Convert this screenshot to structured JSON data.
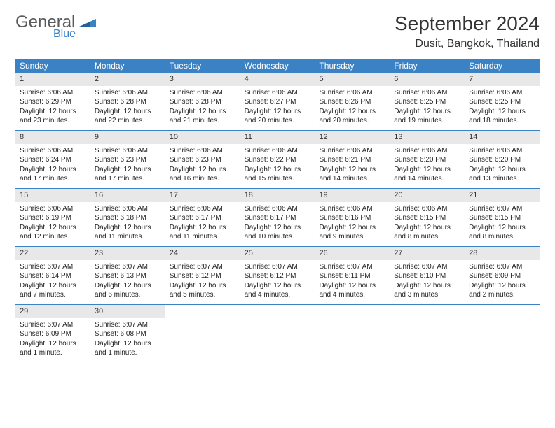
{
  "logo": {
    "text_general": "General",
    "text_blue": "Blue"
  },
  "title": "September 2024",
  "location": "Dusit, Bangkok, Thailand",
  "colors": {
    "header_bg": "#3b82c4",
    "daynum_bg": "#e8e8e8",
    "page_bg": "#ffffff",
    "text": "#222222"
  },
  "day_names": [
    "Sunday",
    "Monday",
    "Tuesday",
    "Wednesday",
    "Thursday",
    "Friday",
    "Saturday"
  ],
  "days": [
    {
      "n": 1,
      "sunrise": "6:06 AM",
      "sunset": "6:29 PM",
      "daylight": "12 hours and 23 minutes."
    },
    {
      "n": 2,
      "sunrise": "6:06 AM",
      "sunset": "6:28 PM",
      "daylight": "12 hours and 22 minutes."
    },
    {
      "n": 3,
      "sunrise": "6:06 AM",
      "sunset": "6:28 PM",
      "daylight": "12 hours and 21 minutes."
    },
    {
      "n": 4,
      "sunrise": "6:06 AM",
      "sunset": "6:27 PM",
      "daylight": "12 hours and 20 minutes."
    },
    {
      "n": 5,
      "sunrise": "6:06 AM",
      "sunset": "6:26 PM",
      "daylight": "12 hours and 20 minutes."
    },
    {
      "n": 6,
      "sunrise": "6:06 AM",
      "sunset": "6:25 PM",
      "daylight": "12 hours and 19 minutes."
    },
    {
      "n": 7,
      "sunrise": "6:06 AM",
      "sunset": "6:25 PM",
      "daylight": "12 hours and 18 minutes."
    },
    {
      "n": 8,
      "sunrise": "6:06 AM",
      "sunset": "6:24 PM",
      "daylight": "12 hours and 17 minutes."
    },
    {
      "n": 9,
      "sunrise": "6:06 AM",
      "sunset": "6:23 PM",
      "daylight": "12 hours and 17 minutes."
    },
    {
      "n": 10,
      "sunrise": "6:06 AM",
      "sunset": "6:23 PM",
      "daylight": "12 hours and 16 minutes."
    },
    {
      "n": 11,
      "sunrise": "6:06 AM",
      "sunset": "6:22 PM",
      "daylight": "12 hours and 15 minutes."
    },
    {
      "n": 12,
      "sunrise": "6:06 AM",
      "sunset": "6:21 PM",
      "daylight": "12 hours and 14 minutes."
    },
    {
      "n": 13,
      "sunrise": "6:06 AM",
      "sunset": "6:20 PM",
      "daylight": "12 hours and 14 minutes."
    },
    {
      "n": 14,
      "sunrise": "6:06 AM",
      "sunset": "6:20 PM",
      "daylight": "12 hours and 13 minutes."
    },
    {
      "n": 15,
      "sunrise": "6:06 AM",
      "sunset": "6:19 PM",
      "daylight": "12 hours and 12 minutes."
    },
    {
      "n": 16,
      "sunrise": "6:06 AM",
      "sunset": "6:18 PM",
      "daylight": "12 hours and 11 minutes."
    },
    {
      "n": 17,
      "sunrise": "6:06 AM",
      "sunset": "6:17 PM",
      "daylight": "12 hours and 11 minutes."
    },
    {
      "n": 18,
      "sunrise": "6:06 AM",
      "sunset": "6:17 PM",
      "daylight": "12 hours and 10 minutes."
    },
    {
      "n": 19,
      "sunrise": "6:06 AM",
      "sunset": "6:16 PM",
      "daylight": "12 hours and 9 minutes."
    },
    {
      "n": 20,
      "sunrise": "6:06 AM",
      "sunset": "6:15 PM",
      "daylight": "12 hours and 8 minutes."
    },
    {
      "n": 21,
      "sunrise": "6:07 AM",
      "sunset": "6:15 PM",
      "daylight": "12 hours and 8 minutes."
    },
    {
      "n": 22,
      "sunrise": "6:07 AM",
      "sunset": "6:14 PM",
      "daylight": "12 hours and 7 minutes."
    },
    {
      "n": 23,
      "sunrise": "6:07 AM",
      "sunset": "6:13 PM",
      "daylight": "12 hours and 6 minutes."
    },
    {
      "n": 24,
      "sunrise": "6:07 AM",
      "sunset": "6:12 PM",
      "daylight": "12 hours and 5 minutes."
    },
    {
      "n": 25,
      "sunrise": "6:07 AM",
      "sunset": "6:12 PM",
      "daylight": "12 hours and 4 minutes."
    },
    {
      "n": 26,
      "sunrise": "6:07 AM",
      "sunset": "6:11 PM",
      "daylight": "12 hours and 4 minutes."
    },
    {
      "n": 27,
      "sunrise": "6:07 AM",
      "sunset": "6:10 PM",
      "daylight": "12 hours and 3 minutes."
    },
    {
      "n": 28,
      "sunrise": "6:07 AM",
      "sunset": "6:09 PM",
      "daylight": "12 hours and 2 minutes."
    },
    {
      "n": 29,
      "sunrise": "6:07 AM",
      "sunset": "6:09 PM",
      "daylight": "12 hours and 1 minute."
    },
    {
      "n": 30,
      "sunrise": "6:07 AM",
      "sunset": "6:08 PM",
      "daylight": "12 hours and 1 minute."
    }
  ],
  "labels": {
    "sunrise": "Sunrise:",
    "sunset": "Sunset:",
    "daylight": "Daylight:"
  },
  "layout": {
    "first_day_column": 0,
    "weeks": 5,
    "columns": 7
  }
}
